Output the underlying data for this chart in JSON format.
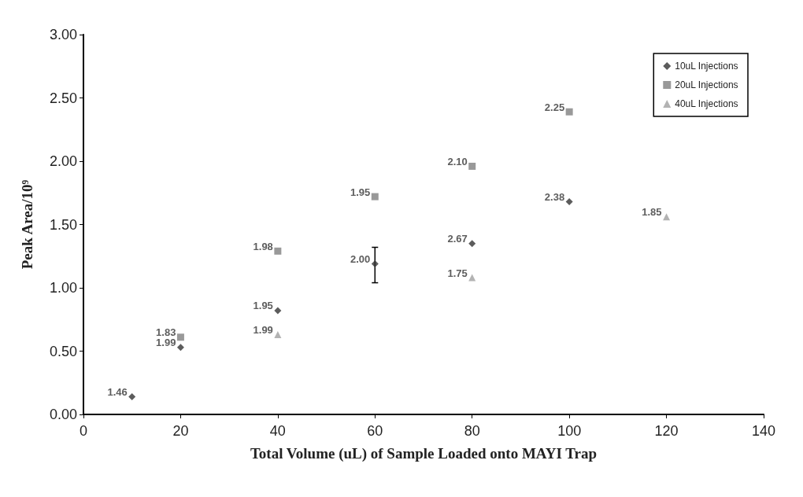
{
  "chart_data": {
    "type": "scatter",
    "xlabel": "Total Volume (uL) of Sample Loaded onto MAYI Trap",
    "ylabel": "Peak Area/10⁹",
    "xlim": [
      0,
      140
    ],
    "xticks": [
      0,
      20,
      40,
      60,
      80,
      100,
      120,
      140
    ],
    "ylim": [
      0,
      3
    ],
    "yticks": [
      {
        "value": 0,
        "label": "0.00"
      },
      {
        "value": 0.5,
        "label": "0.50"
      },
      {
        "value": 1,
        "label": "1.00"
      },
      {
        "value": 1.5,
        "label": "1.50"
      },
      {
        "value": 2,
        "label": "2.00"
      },
      {
        "value": 2.5,
        "label": "2.50"
      },
      {
        "value": 3,
        "label": "3.00"
      }
    ],
    "grid": false,
    "legend": "top right",
    "series": [
      {
        "name": "10uL Injections",
        "color": "#333333",
        "marker": "diamond",
        "x": [
          10,
          20,
          40,
          60,
          80,
          100
        ],
        "values": [
          0.14,
          0.53,
          0.82,
          1.19,
          1.35,
          1.68
        ],
        "errors": [
          null,
          null,
          null,
          [
            1.04,
            1.32
          ],
          null,
          null
        ]
      },
      {
        "name": "20uL Injections",
        "color": "#808080",
        "marker": "square",
        "x": [
          20,
          40,
          60,
          80,
          100
        ],
        "values": [
          0.61,
          1.29,
          1.72,
          1.96,
          2.39
        ]
      },
      {
        "name": "40uL Injections",
        "color": "#a0a0a0",
        "marker": "triangle",
        "x": [
          40,
          80,
          120
        ],
        "values": [
          0.63,
          1.08,
          1.56
        ]
      }
    ],
    "annotations": [
      {
        "text": "1.46",
        "x": 10,
        "y": 0.14
      },
      {
        "text": "1.99",
        "x": 20,
        "y": 0.53
      },
      {
        "text": "1.83",
        "x": 20,
        "y": 0.61
      },
      {
        "text": "1.95",
        "x": 40,
        "y": 0.82
      },
      {
        "text": "1.98",
        "x": 40,
        "y": 1.29
      },
      {
        "text": "1.99",
        "x": 40,
        "y": 0.63
      },
      {
        "text": "2.00",
        "x": 60,
        "y": 1.19
      },
      {
        "text": "1.95",
        "x": 60,
        "y": 1.72
      },
      {
        "text": "2.67",
        "x": 80,
        "y": 1.35
      },
      {
        "text": "2.10",
        "x": 80,
        "y": 1.96
      },
      {
        "text": "1.75",
        "x": 80,
        "y": 1.08
      },
      {
        "text": "2.38",
        "x": 100,
        "y": 1.68
      },
      {
        "text": "2.25",
        "x": 100,
        "y": 2.39
      },
      {
        "text": "1.85",
        "x": 120,
        "y": 1.56
      }
    ]
  }
}
